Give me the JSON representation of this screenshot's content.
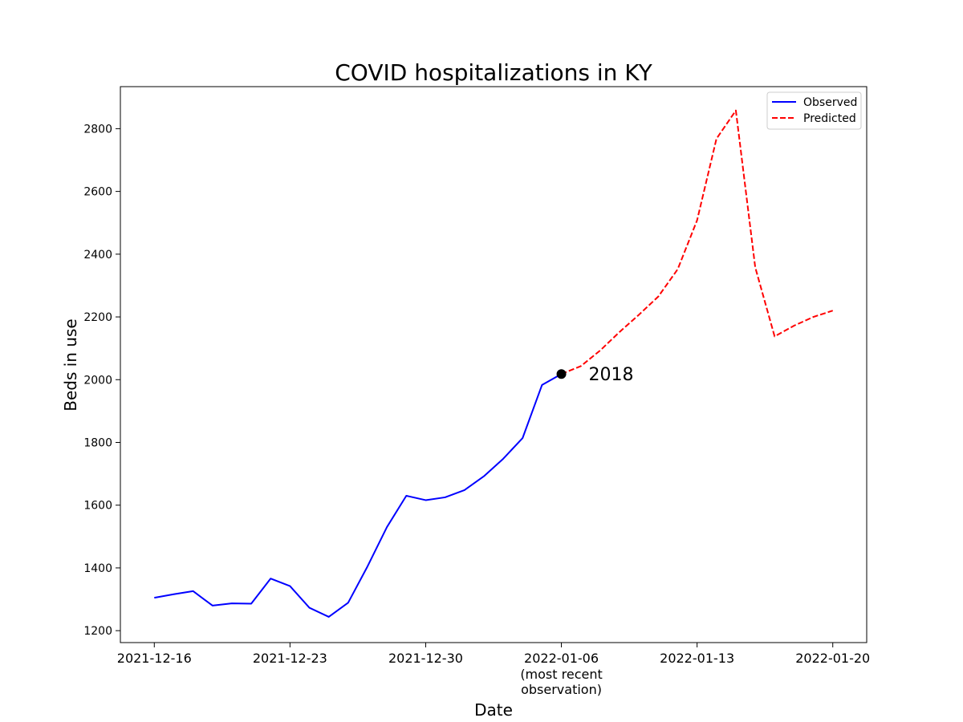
{
  "chart_data": {
    "type": "line",
    "title": "COVID hospitalizations in KY",
    "xlabel": "Date",
    "ylabel": "Beds in use",
    "x_ticks": [
      {
        "date": "2021-12-16",
        "label": "2021-12-16",
        "sublabel": ""
      },
      {
        "date": "2021-12-23",
        "label": "2021-12-23",
        "sublabel": ""
      },
      {
        "date": "2021-12-30",
        "label": "2021-12-30",
        "sublabel": ""
      },
      {
        "date": "2022-01-06",
        "label": "2022-01-06",
        "sublabel": "(most recent\nobservation)"
      },
      {
        "date": "2022-01-13",
        "label": "2022-01-13",
        "sublabel": ""
      },
      {
        "date": "2022-01-20",
        "label": "2022-01-20",
        "sublabel": ""
      }
    ],
    "y_ticks": [
      1200,
      1400,
      1600,
      1800,
      2000,
      2200,
      2400,
      2600,
      2800
    ],
    "xlim": [
      "2021-12-14T06:00",
      "2022-01-21T18:00"
    ],
    "ylim": [
      1162,
      2934
    ],
    "grid": false,
    "legend_position": "top-right",
    "series": [
      {
        "name": "Observed",
        "style": "solid",
        "color": "#0000ff",
        "x": [
          "2021-12-16",
          "2021-12-17",
          "2021-12-18",
          "2021-12-19",
          "2021-12-20",
          "2021-12-21",
          "2021-12-22",
          "2021-12-23",
          "2021-12-24",
          "2021-12-25",
          "2021-12-26",
          "2021-12-27",
          "2021-12-28",
          "2021-12-29",
          "2021-12-30",
          "2021-12-31",
          "2022-01-01",
          "2022-01-02",
          "2022-01-03",
          "2022-01-04",
          "2022-01-05",
          "2022-01-06"
        ],
        "values": [
          1305,
          1316,
          1326,
          1280,
          1287,
          1286,
          1366,
          1342,
          1273,
          1244,
          1289,
          1405,
          1530,
          1630,
          1616,
          1625,
          1648,
          1692,
          1748,
          1814,
          1983,
          2018
        ]
      },
      {
        "name": "Predicted",
        "style": "dashed",
        "color": "#ff0000",
        "x": [
          "2022-01-06",
          "2022-01-07",
          "2022-01-08",
          "2022-01-09",
          "2022-01-10",
          "2022-01-11",
          "2022-01-12",
          "2022-01-13",
          "2022-01-14",
          "2022-01-15",
          "2022-01-16",
          "2022-01-17",
          "2022-01-18",
          "2022-01-19",
          "2022-01-20"
        ],
        "values": [
          2018,
          2043,
          2093,
          2152,
          2207,
          2265,
          2352,
          2508,
          2768,
          2858,
          2358,
          2138,
          2172,
          2200,
          2220
        ]
      }
    ],
    "annotations": [
      {
        "x": "2022-01-06",
        "y": 2018,
        "text": "2018",
        "marker_color": "#000000"
      }
    ]
  }
}
